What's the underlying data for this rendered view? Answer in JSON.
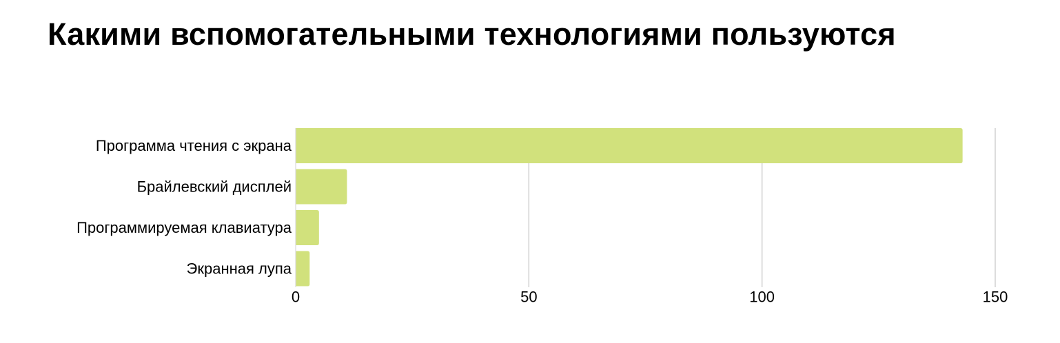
{
  "chart_data": {
    "type": "bar",
    "orientation": "horizontal",
    "title": "Какими вспомогательными технологиями пользуются",
    "categories": [
      "Программа чтения с экрана",
      "Брайлевский дисплей",
      "Программируемая клавиатура",
      "Экранная лупа"
    ],
    "values": [
      143,
      11,
      5,
      3
    ],
    "xlim": [
      0,
      150
    ],
    "x_ticks": [
      0,
      50,
      100,
      150
    ],
    "xlabel": "",
    "ylabel": "",
    "grid": "vertical",
    "legend": "none",
    "bar_color": "#d1e17c",
    "grid_color": "#cccccc"
  }
}
